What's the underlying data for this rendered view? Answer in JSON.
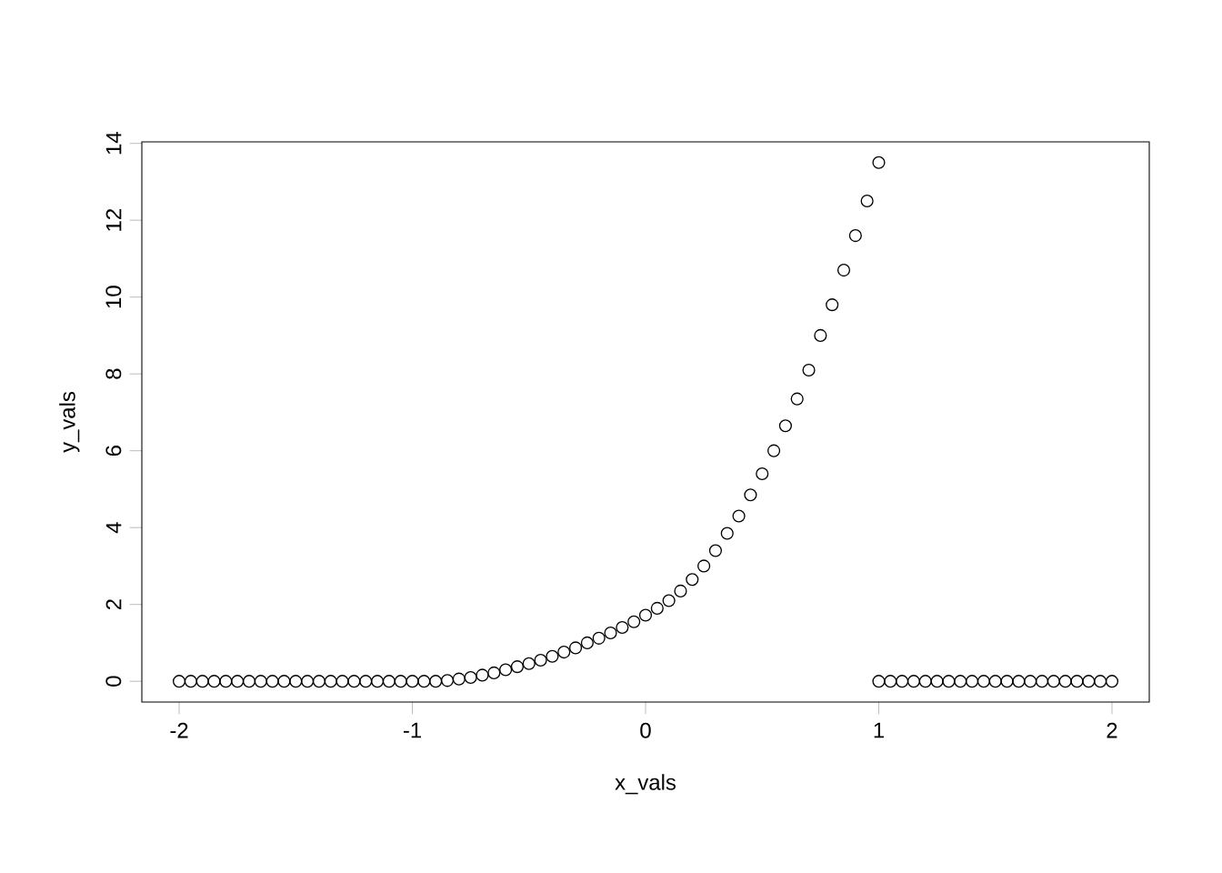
{
  "chart_data": {
    "type": "scatter",
    "xlabel": "x_vals",
    "ylabel": "y_vals",
    "x": [
      -2,
      -1.95,
      -1.9,
      -1.85,
      -1.8,
      -1.75,
      -1.7,
      -1.65,
      -1.6,
      -1.55,
      -1.5,
      -1.45,
      -1.4,
      -1.35,
      -1.3,
      -1.25,
      -1.2,
      -1.15,
      -1.1,
      -1.05,
      -1,
      -0.95,
      -0.9,
      -0.85,
      -0.8,
      -0.75,
      -0.7,
      -0.65,
      -0.6,
      -0.55,
      -0.5,
      -0.45,
      -0.4,
      -0.35,
      -0.3,
      -0.25,
      -0.2,
      -0.15,
      -0.1,
      -0.05,
      0,
      0.05,
      0.1,
      0.15,
      0.2,
      0.25,
      0.3,
      0.35,
      0.4,
      0.45,
      0.5,
      0.55,
      0.6,
      0.65,
      0.7,
      0.75,
      0.8,
      0.85,
      0.9,
      0.95,
      1,
      1,
      1.05,
      1.1,
      1.15,
      1.2,
      1.25,
      1.3,
      1.35,
      1.4,
      1.45,
      1.5,
      1.55,
      1.6,
      1.65,
      1.7,
      1.75,
      1.8,
      1.85,
      1.9,
      1.95,
      2
    ],
    "values": [
      0,
      0,
      0,
      0,
      0,
      0,
      0,
      0,
      0,
      0,
      0,
      0,
      0,
      0,
      0,
      0,
      0,
      0,
      0,
      0,
      0,
      0,
      0,
      0.02,
      0.06,
      0.1,
      0.16,
      0.22,
      0.3,
      0.38,
      0.46,
      0.55,
      0.65,
      0.76,
      0.87,
      1.0,
      1.12,
      1.26,
      1.4,
      1.55,
      1.72,
      1.9,
      2.1,
      2.35,
      2.65,
      3.0,
      3.4,
      3.85,
      4.3,
      4.85,
      5.4,
      6.0,
      6.65,
      7.35,
      8.1,
      9.0,
      9.8,
      10.7,
      11.6,
      12.5,
      13.5,
      0,
      0,
      0,
      0,
      0,
      0,
      0,
      0,
      0,
      0,
      0,
      0,
      0,
      0,
      0,
      0,
      0,
      0,
      0,
      0,
      0
    ],
    "color": "#000000",
    "marker": "circle",
    "xlim": [
      -2.16,
      2.16
    ],
    "ylim": [
      -0.54,
      14.04
    ],
    "xticks": [
      -2,
      -1,
      0,
      1,
      2
    ],
    "yticks": [
      0,
      2,
      4,
      6,
      8,
      10,
      12,
      14
    ]
  }
}
